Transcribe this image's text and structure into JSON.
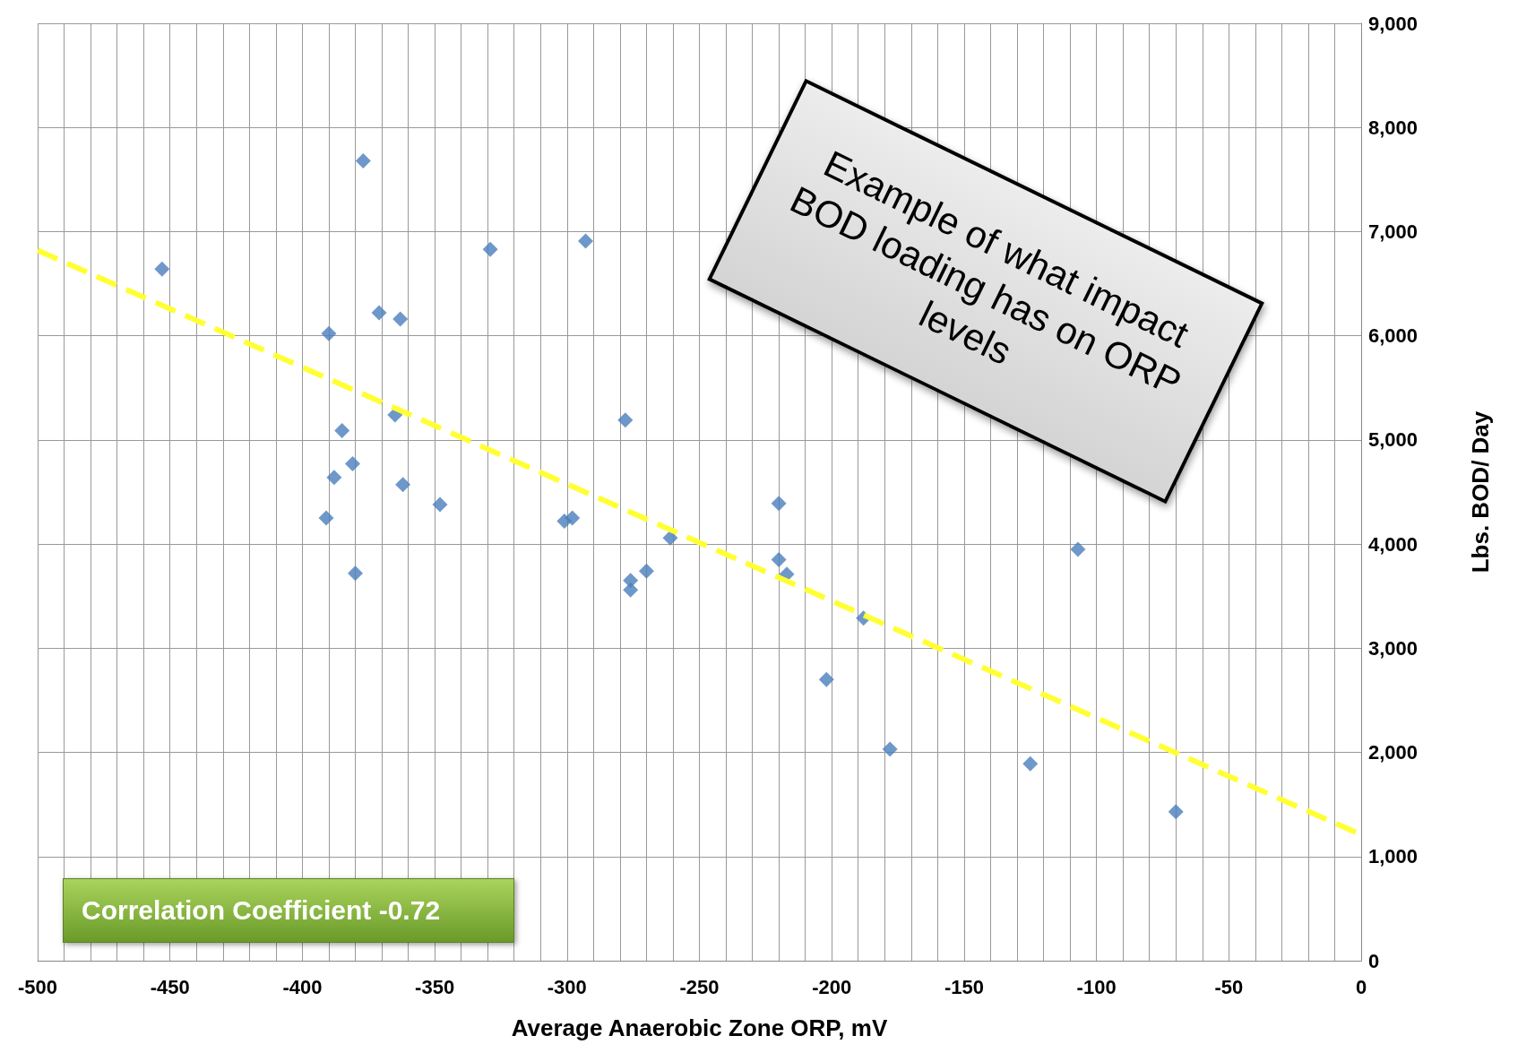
{
  "chart_data": {
    "type": "scatter",
    "xlabel": "Average Anaerobic Zone ORP, mV",
    "ylabel": "Lbs. BOD/ Day",
    "x": [
      -453,
      -377,
      -390,
      -371,
      -363,
      -329,
      -293,
      -385,
      -365,
      -381,
      -388,
      -362,
      -348,
      -391,
      -380,
      -278,
      -301,
      -298,
      -261,
      -276,
      -276,
      -270,
      -220,
      -220,
      -217,
      -188,
      -202,
      -178,
      -125,
      -107,
      -70
    ],
    "series": [
      {
        "color": "#4a7ebb",
        "values": [
          6640,
          7680,
          6020,
          6220,
          6160,
          6830,
          6910,
          5090,
          5240,
          4770,
          4640,
          4570,
          4380,
          4250,
          3720,
          5190,
          4220,
          4250,
          4060,
          3650,
          3560,
          3740,
          4390,
          3850,
          3710,
          3290,
          2700,
          2030,
          1890,
          3950,
          1430
        ]
      },
      {
        "type": "line",
        "color": "#ffff33",
        "line_style": "dashed",
        "marker": "none",
        "x": [
          -500,
          0
        ],
        "values": [
          6820,
          1210
        ]
      }
    ],
    "marker": "diamond",
    "grid": true,
    "xlim": [
      -500,
      0
    ],
    "ylim": [
      0,
      9000
    ],
    "xticks": [
      -500,
      {
        "value": -490,
        "label": null
      },
      {
        "value": -480,
        "label": null
      },
      {
        "value": -470,
        "label": null
      },
      {
        "value": -460,
        "label": null
      },
      -450,
      {
        "value": -440,
        "label": null
      },
      {
        "value": -430,
        "label": null
      },
      {
        "value": -420,
        "label": null
      },
      {
        "value": -410,
        "label": null
      },
      -400,
      {
        "value": -390,
        "label": null
      },
      {
        "value": -380,
        "label": null
      },
      {
        "value": -370,
        "label": null
      },
      {
        "value": -360,
        "label": null
      },
      -350,
      {
        "value": -340,
        "label": null
      },
      {
        "value": -330,
        "label": null
      },
      {
        "value": -320,
        "label": null
      },
      {
        "value": -310,
        "label": null
      },
      -300,
      {
        "value": -290,
        "label": null
      },
      {
        "value": -280,
        "label": null
      },
      {
        "value": -270,
        "label": null
      },
      {
        "value": -260,
        "label": null
      },
      -250,
      {
        "value": -240,
        "label": null
      },
      {
        "value": -230,
        "label": null
      },
      {
        "value": -220,
        "label": null
      },
      {
        "value": -210,
        "label": null
      },
      -200,
      {
        "value": -190,
        "label": null
      },
      {
        "value": -180,
        "label": null
      },
      {
        "value": -170,
        "label": null
      },
      {
        "value": -160,
        "label": null
      },
      -150,
      {
        "value": -140,
        "label": null
      },
      {
        "value": -130,
        "label": null
      },
      {
        "value": -120,
        "label": null
      },
      {
        "value": -110,
        "label": null
      },
      -100,
      {
        "value": -90,
        "label": null
      },
      {
        "value": -80,
        "label": null
      },
      {
        "value": -70,
        "label": null
      },
      {
        "value": -60,
        "label": null
      },
      -50,
      {
        "value": -40,
        "label": null
      },
      {
        "value": -30,
        "label": null
      },
      {
        "value": -20,
        "label": null
      },
      {
        "value": -10,
        "label": null
      },
      0
    ],
    "yticks": [
      {
        "value": 0,
        "label": "0"
      },
      {
        "value": 1000,
        "label": "1,000"
      },
      {
        "value": 2000,
        "label": "2,000"
      },
      {
        "value": 3000,
        "label": "3,000"
      },
      {
        "value": 4000,
        "label": "4,000"
      },
      {
        "value": 5000,
        "label": "5,000"
      },
      {
        "value": 6000,
        "label": "6,000"
      },
      {
        "value": 7000,
        "label": "7,000"
      },
      {
        "value": 8000,
        "label": "8,000"
      },
      {
        "value": 9000,
        "label": "9,000"
      }
    ],
    "annotations": [
      "Example of what impact BOD loading has on ORP levels",
      "Correlation Coefficient -0.72"
    ]
  }
}
